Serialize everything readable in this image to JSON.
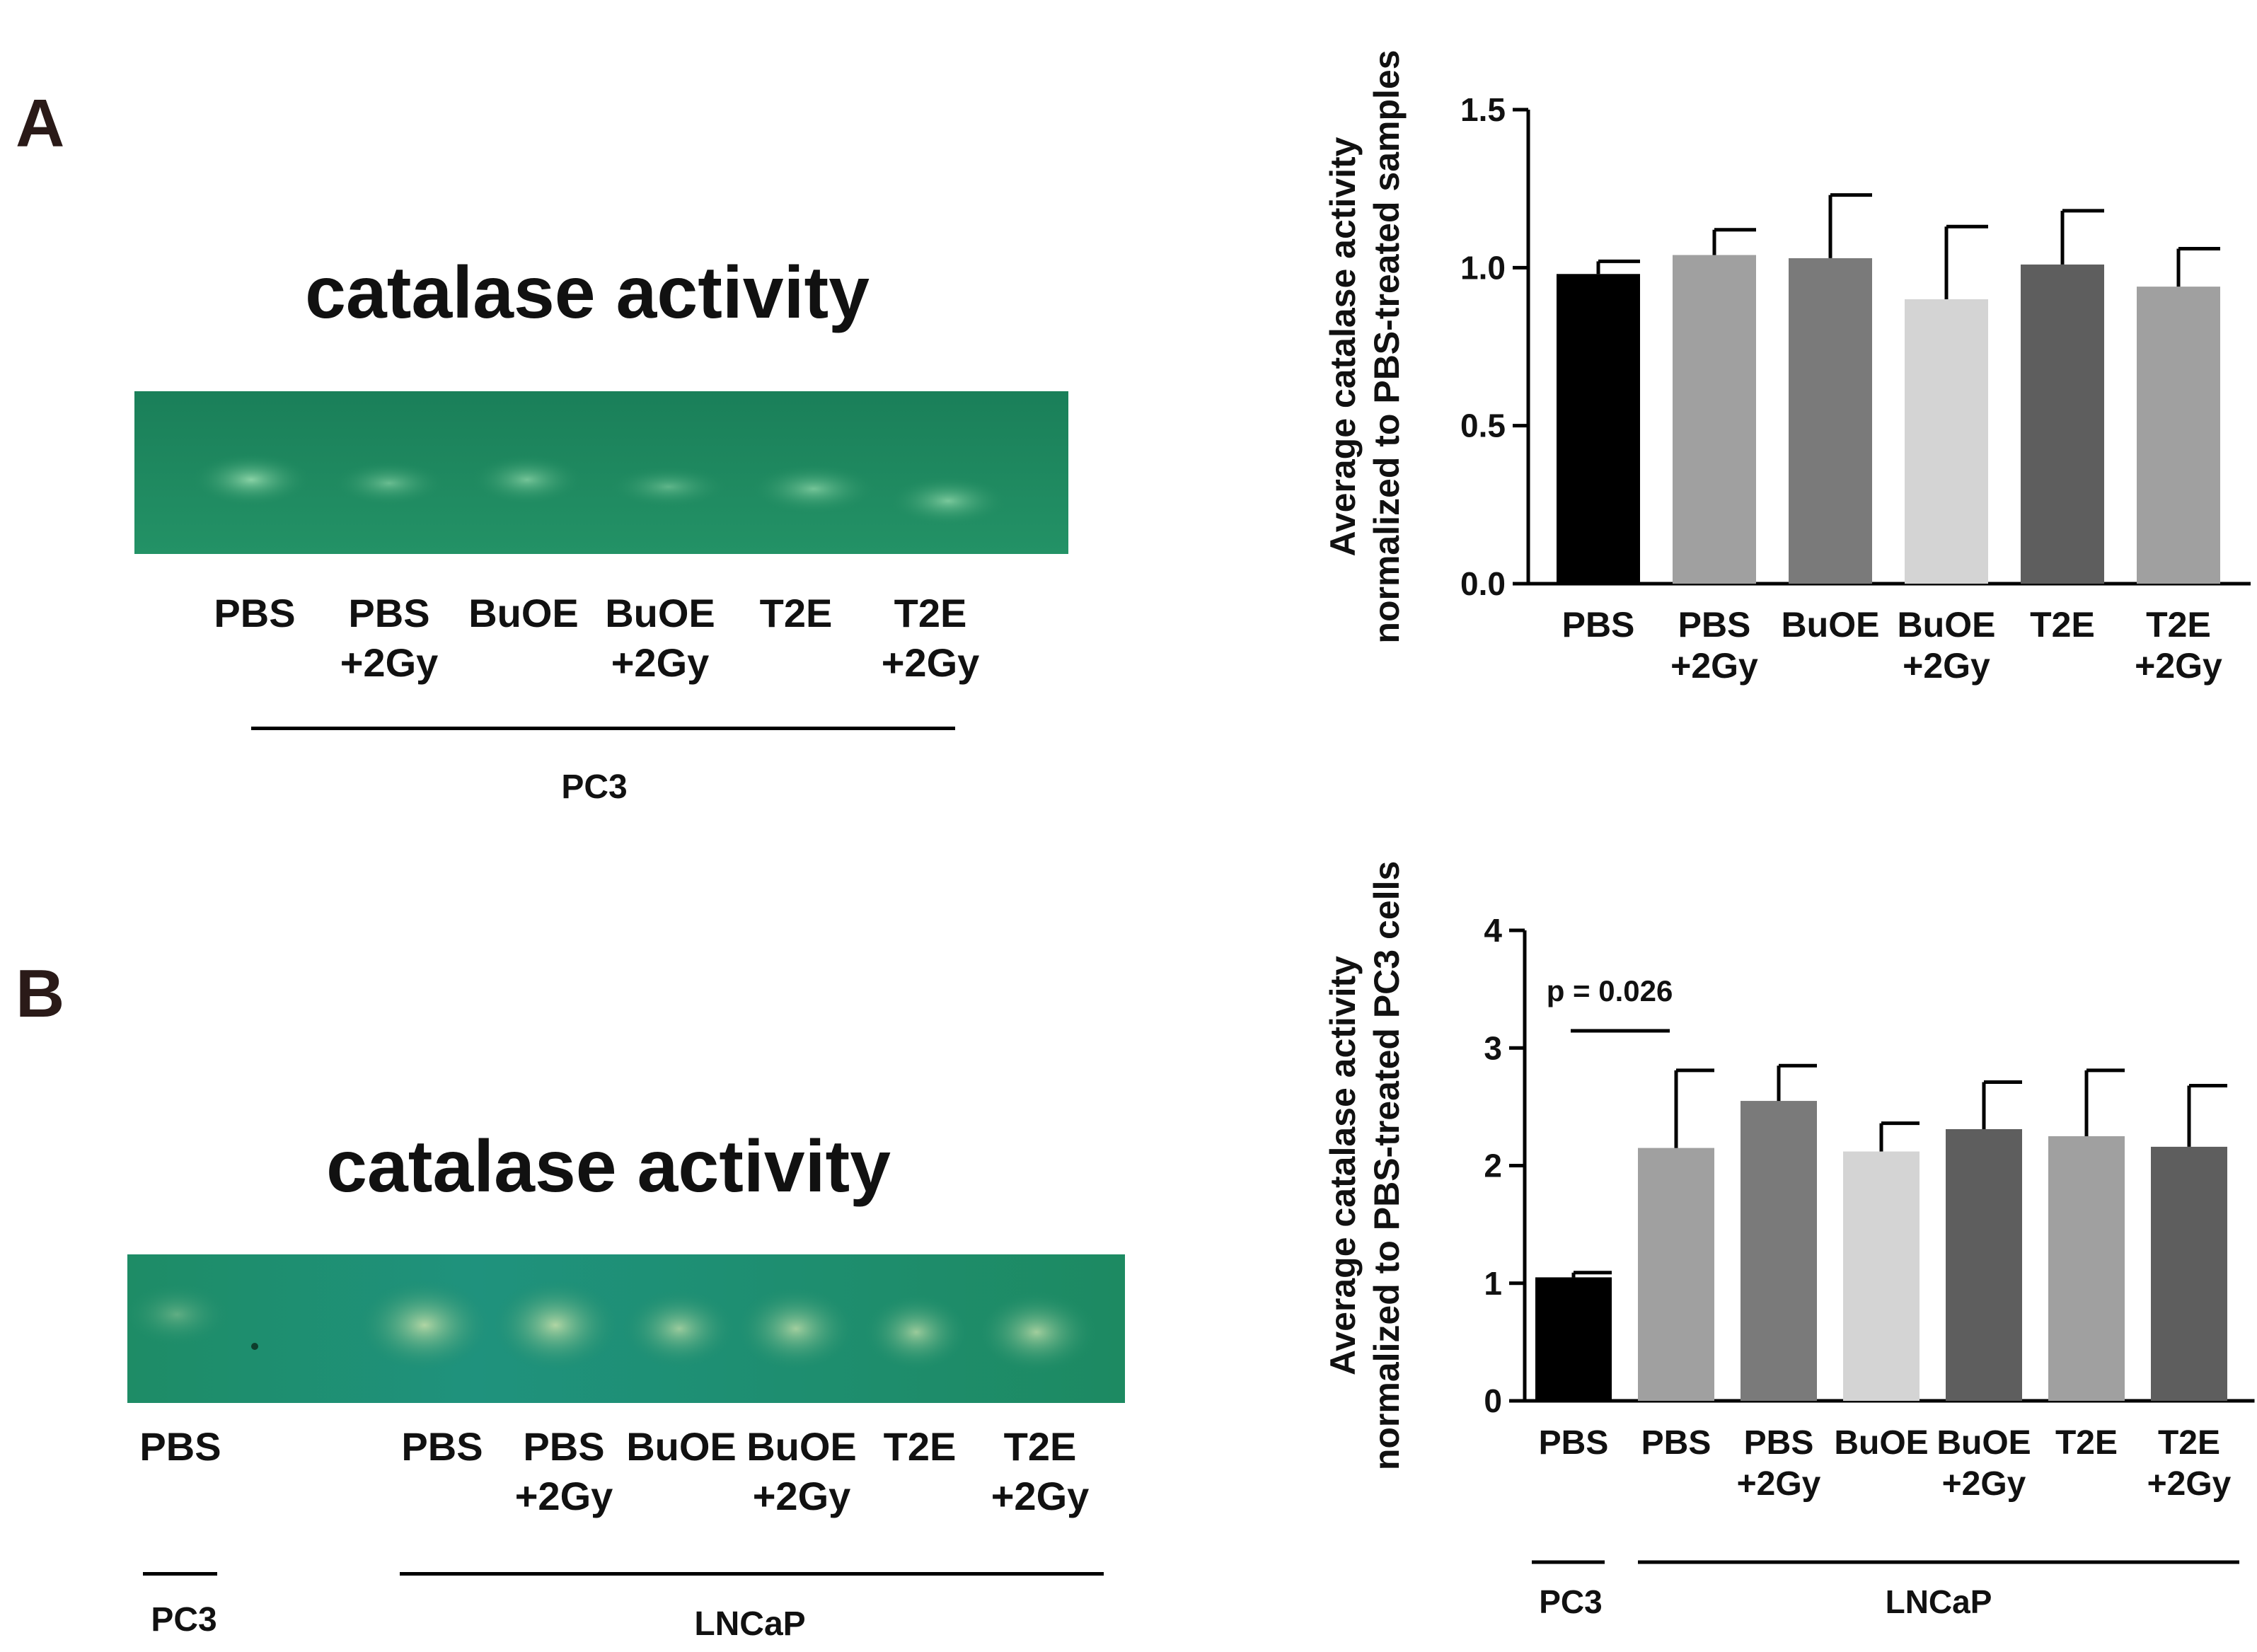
{
  "panel_a": {
    "letter": "A",
    "gel_title": "catalase activity",
    "lanes": [
      {
        "line1": "PBS",
        "line2": ""
      },
      {
        "line1": "PBS",
        "line2": "+2Gy"
      },
      {
        "line1": "BuOE",
        "line2": ""
      },
      {
        "line1": "BuOE",
        "line2": "+2Gy"
      },
      {
        "line1": "T2E",
        "line2": ""
      },
      {
        "line1": "T2E",
        "line2": "+2Gy"
      }
    ],
    "group_label": "PC3"
  },
  "panel_b": {
    "letter": "B",
    "gel_title": "catalase activity",
    "lanes": [
      {
        "line1": "PBS",
        "line2": ""
      },
      {
        "line1": "PBS",
        "line2": ""
      },
      {
        "line1": "PBS",
        "line2": "+2Gy"
      },
      {
        "line1": "BuOE",
        "line2": ""
      },
      {
        "line1": "BuOE",
        "line2": "+2Gy"
      },
      {
        "line1": "T2E",
        "line2": ""
      },
      {
        "line1": "T2E",
        "line2": "+2Gy"
      }
    ],
    "group_labels": [
      "PC3",
      "LNCaP"
    ]
  },
  "chart_data": [
    {
      "type": "bar",
      "ylabel_line1": "Average catalase activity",
      "ylabel_line2": "normalized to PBS-treated samples",
      "ylim": [
        0,
        1.5
      ],
      "yticks": [
        "0.0",
        "0.5",
        "1.0",
        "1.5"
      ],
      "categories": [
        {
          "line1": "PBS",
          "line2": ""
        },
        {
          "line1": "PBS",
          "line2": "+2Gy"
        },
        {
          "line1": "BuOE",
          "line2": ""
        },
        {
          "line1": "BuOE",
          "line2": "+2Gy"
        },
        {
          "line1": "T2E",
          "line2": ""
        },
        {
          "line1": "T2E",
          "line2": "+2Gy"
        }
      ],
      "values": [
        0.98,
        1.04,
        1.03,
        0.9,
        1.01,
        0.94
      ],
      "errors": [
        0.04,
        0.08,
        0.2,
        0.23,
        0.17,
        0.12
      ],
      "colors": [
        "#000000",
        "#a0a0a0",
        "#7a7a7a",
        "#d4d4d4",
        "#5e5e5e",
        "#a0a0a0"
      ]
    },
    {
      "type": "bar",
      "ylabel_line1": "Average catalase activity",
      "ylabel_line2": "normalized to PBS-treated PC3 cells",
      "ylim": [
        0,
        4
      ],
      "yticks": [
        "0",
        "1",
        "2",
        "3",
        "4"
      ],
      "categories": [
        {
          "line1": "PBS",
          "line2": ""
        },
        {
          "line1": "PBS",
          "line2": ""
        },
        {
          "line1": "PBS",
          "line2": "+2Gy"
        },
        {
          "line1": "BuOE",
          "line2": ""
        },
        {
          "line1": "BuOE",
          "line2": "+2Gy"
        },
        {
          "line1": "T2E",
          "line2": ""
        },
        {
          "line1": "T2E",
          "line2": "+2Gy"
        }
      ],
      "values": [
        1.05,
        2.15,
        2.55,
        2.12,
        2.31,
        2.25,
        2.16
      ],
      "errors": [
        0.04,
        0.66,
        0.3,
        0.24,
        0.4,
        0.56,
        0.52
      ],
      "colors": [
        "#000000",
        "#a0a0a0",
        "#7a7a7a",
        "#d4d4d4",
        "#5e5e5e",
        "#a0a0a0",
        "#5e5e5e"
      ],
      "annotation": "p = 0.026",
      "group_labels": [
        "PC3",
        "LNCaP"
      ]
    }
  ]
}
